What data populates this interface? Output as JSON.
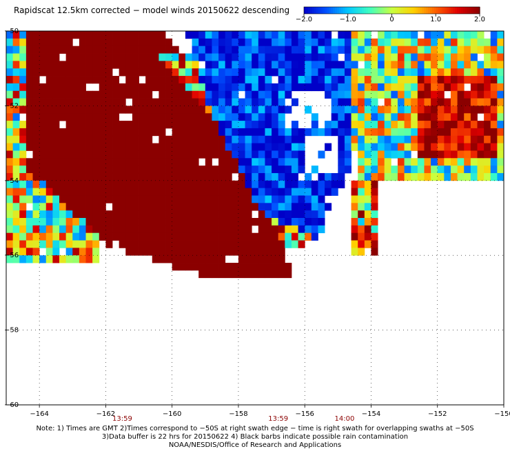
{
  "title": "Rapidscat 12.5km corrected − model winds 20150622 descending",
  "colorbar": {
    "ticks": [
      {
        "value": -2.0,
        "label": "−2.0"
      },
      {
        "value": -1.0,
        "label": "−1.0"
      },
      {
        "value": 0,
        "label": "0"
      },
      {
        "value": 1.0,
        "label": "1.0"
      },
      {
        "value": 2.0,
        "label": "2.0"
      }
    ],
    "range": [
      -2.0,
      2.0
    ],
    "colors": [
      "#0000c8",
      "#0050ff",
      "#00c8ff",
      "#40ffc0",
      "#c8ff40",
      "#ffd000",
      "#ff6000",
      "#e00000",
      "#8b0000"
    ]
  },
  "chart_data": {
    "type": "heatmap",
    "title": "Rapidscat 12.5km corrected − model winds 20150622 descending",
    "xlim": [
      -165,
      -150
    ],
    "ylim": [
      -60,
      -50
    ],
    "x_ticks": [
      {
        "value": -164,
        "label": "−164"
      },
      {
        "value": -162,
        "label": "−162"
      },
      {
        "value": -160,
        "label": "−160"
      },
      {
        "value": -158,
        "label": "−158"
      },
      {
        "value": -156,
        "label": "−156"
      },
      {
        "value": -154,
        "label": "−154"
      },
      {
        "value": -152,
        "label": "−152"
      },
      {
        "value": -150,
        "label": "−150"
      }
    ],
    "y_ticks": [
      {
        "value": -50,
        "label": "−50"
      },
      {
        "value": -52,
        "label": "−52"
      },
      {
        "value": -54,
        "label": "−54"
      },
      {
        "value": -56,
        "label": "−56"
      },
      {
        "value": -58,
        "label": "−58"
      },
      {
        "value": -60,
        "label": "−60"
      }
    ],
    "grid": "dotted",
    "cell_size_deg": 0.2,
    "regions": [
      {
        "name": "left swath edge",
        "polygon": [
          [
            -165,
            -50
          ],
          [
            -162.2,
            -50
          ],
          [
            -162.2,
            -56.2
          ],
          [
            -165,
            -56.2
          ]
        ],
        "value": 0.2,
        "noise": 1.6
      },
      {
        "name": "strong positive band",
        "polygon": [
          [
            -164.5,
            -50
          ],
          [
            -160.4,
            -50
          ],
          [
            -157,
            -53.4
          ],
          [
            -156.4,
            -56.7
          ],
          [
            -158.4,
            -56.7
          ],
          [
            -161.8,
            -55.8
          ],
          [
            -164.5,
            -53.6
          ]
        ],
        "value": 2.4,
        "noise": 0.15
      },
      {
        "name": "transition fringe",
        "polygon": [
          [
            -160.6,
            -50.6
          ],
          [
            -159.4,
            -50.6
          ],
          [
            -156.2,
            -53.8
          ],
          [
            -155.6,
            -55.6
          ],
          [
            -156.6,
            -55.8
          ],
          [
            -157.6,
            -53.6
          ]
        ],
        "value": 0.3,
        "noise": 1.6
      },
      {
        "name": "negative region",
        "polygon": [
          [
            -159.6,
            -50
          ],
          [
            -153.2,
            -50
          ],
          [
            -154.2,
            -52.2
          ],
          [
            -154.8,
            -54.0
          ],
          [
            -155.6,
            -55.6
          ],
          [
            -157.4,
            -54.8
          ],
          [
            -158.8,
            -52.2
          ]
        ],
        "value": -1.7,
        "noise": 0.7
      },
      {
        "name": "eastern mixed region",
        "polygon": [
          [
            -154.6,
            -50
          ],
          [
            -150,
            -50
          ],
          [
            -150,
            -54.0
          ],
          [
            -154.4,
            -54.0
          ],
          [
            -154.6,
            -52.5
          ]
        ],
        "value": -0.1,
        "noise": 1.4
      },
      {
        "name": "eastern positive core",
        "polygon": [
          [
            -152.6,
            -51.2
          ],
          [
            -150.2,
            -51.2
          ],
          [
            -150.2,
            -53.4
          ],
          [
            -152.6,
            -53.4
          ]
        ],
        "value": 1.6,
        "noise": 0.7
      },
      {
        "name": "south central patch",
        "polygon": [
          [
            -154.6,
            -54.0
          ],
          [
            -153.8,
            -54.0
          ],
          [
            -153.8,
            -56.0
          ],
          [
            -154.6,
            -56.0
          ]
        ],
        "value": 0.6,
        "noise": 1.6
      }
    ],
    "gaps": [
      {
        "polygon": [
          [
            -156.6,
            -51.6
          ],
          [
            -155.2,
            -51.6
          ],
          [
            -155.2,
            -52.6
          ],
          [
            -156.6,
            -52.6
          ]
        ]
      },
      {
        "polygon": [
          [
            -156.0,
            -52.8
          ],
          [
            -155.0,
            -52.8
          ],
          [
            -155.0,
            -53.8
          ],
          [
            -156.0,
            -53.8
          ]
        ]
      },
      {
        "polygon": [
          [
            -155.4,
            -54.4
          ],
          [
            -154.8,
            -54.4
          ],
          [
            -154.8,
            -55.6
          ],
          [
            -155.4,
            -55.6
          ]
        ]
      },
      {
        "polygon": [
          [
            -153.8,
            -54.0
          ],
          [
            -150,
            -54.0
          ],
          [
            -150,
            -56.2
          ],
          [
            -153.8,
            -56.2
          ]
        ]
      }
    ]
  },
  "time_labels": [
    {
      "x": -161.5,
      "text": "13:59"
    },
    {
      "x": -156.8,
      "text": "13:59"
    },
    {
      "x": -154.8,
      "text": "14:00"
    }
  ],
  "notes": {
    "line1": "Note: 1) Times are GMT 2)Times correspond to −50S at right swath edge − time is right swath for overlapping swaths at −50S",
    "line2": "3)Data buffer is 22 hrs for 20150622 4) Black barbs indicate possible rain contamination",
    "line3": "NOAA/NESDIS/Office of Research and Applications"
  }
}
